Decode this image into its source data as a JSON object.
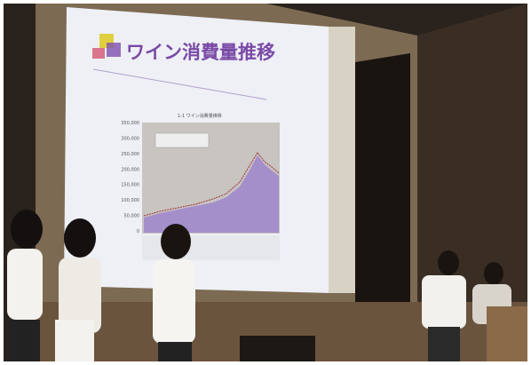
{
  "slide": {
    "title": "ワイン消費量推移",
    "chart": {
      "title": "1-1 ワイン消費量推移",
      "y_labels": [
        "350,000",
        "300,000",
        "250,000",
        "200,000",
        "150,000",
        "100,000",
        "50,000",
        "0"
      ]
    }
  }
}
